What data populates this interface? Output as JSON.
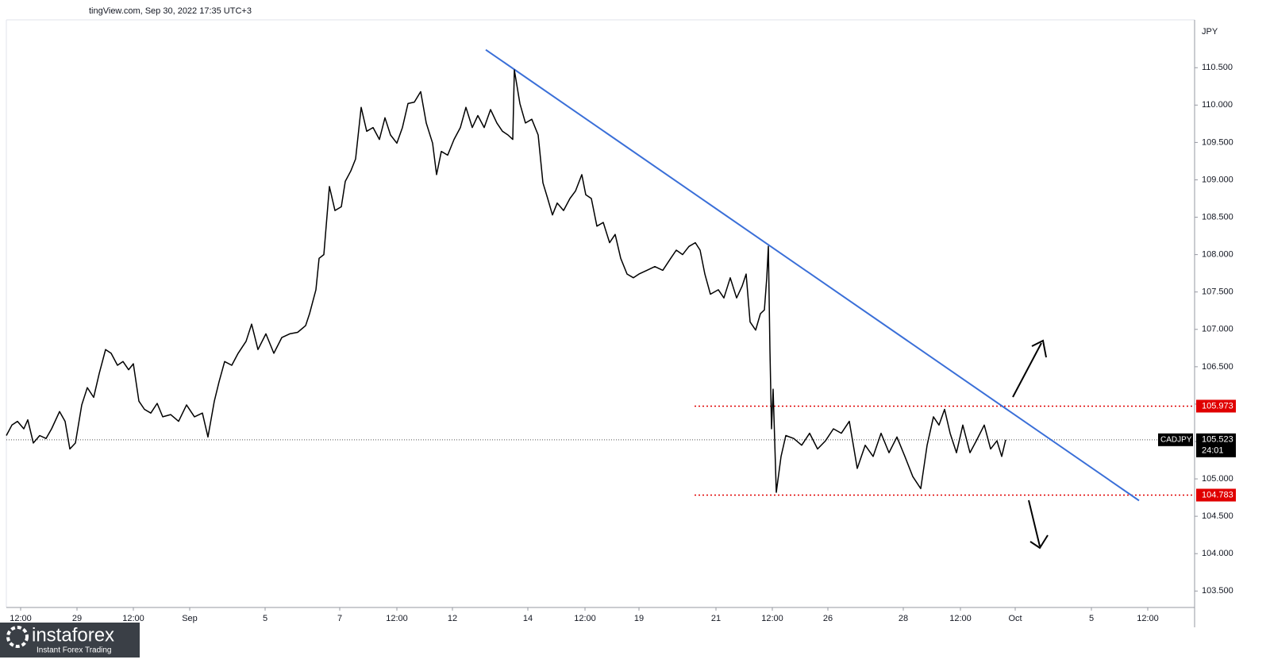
{
  "chart_data": {
    "type": "line",
    "header": "tingView.com, Sep 30, 2022 17:35 UTC+3",
    "currency": "JPY",
    "symbol": "CADJPY",
    "countdown": "24:01",
    "x": [
      0,
      7,
      14,
      22,
      27,
      34,
      42,
      50,
      57,
      67,
      74,
      80,
      87,
      95,
      102,
      110,
      117,
      125,
      132,
      140,
      147,
      154,
      160,
      167,
      174,
      182,
      190,
      197,
      207,
      217,
      227,
      237,
      247,
      254,
      262,
      268,
      275,
      284,
      292,
      302,
      309,
      317,
      327,
      337,
      347,
      357,
      367,
      377,
      382,
      390,
      394,
      400,
      407,
      414,
      422,
      427,
      434,
      440,
      447,
      454,
      462,
      470,
      477,
      484,
      492,
      499,
      506,
      514,
      522,
      529,
      537,
      542,
      548,
      556,
      564,
      572,
      579,
      587,
      594,
      602,
      610,
      618,
      625,
      632,
      638,
      640,
      647,
      654,
      662,
      670,
      676,
      682,
      688,
      694,
      702,
      710,
      717,
      725,
      730,
      737,
      744,
      752,
      760,
      767,
      774,
      782,
      790,
      797,
      807,
      817,
      827,
      837,
      844,
      852,
      860,
      868,
      874,
      880,
      887,
      897,
      904,
      912,
      920,
      927,
      932,
      937,
      944,
      950,
      955,
      958,
      960,
      962,
      964,
      966,
      970,
      976,
      982,
      992,
      1002,
      1012,
      1022,
      1032,
      1042,
      1052,
      1062,
      1072,
      1082,
      1092,
      1102,
      1112,
      1122,
      1132,
      1142,
      1152,
      1160,
      1168,
      1175,
      1182,
      1189,
      1197,
      1205,
      1214,
      1222,
      1232,
      1240,
      1248,
      1254,
      1259
    ],
    "series": [
      {
        "name": "CADJPY",
        "color": "#000000",
        "values": [
          105.58,
          105.72,
          105.77,
          105.67,
          105.79,
          105.48,
          105.58,
          105.54,
          105.67,
          105.9,
          105.77,
          105.4,
          105.48,
          105.99,
          106.22,
          106.09,
          106.41,
          106.73,
          106.68,
          106.52,
          106.57,
          106.46,
          106.54,
          106.04,
          105.93,
          105.88,
          106.01,
          105.83,
          105.86,
          105.77,
          105.99,
          105.83,
          105.88,
          105.56,
          106.04,
          106.3,
          106.57,
          106.52,
          106.68,
          106.84,
          107.07,
          106.73,
          106.94,
          106.68,
          106.89,
          106.94,
          106.96,
          107.05,
          107.21,
          107.53,
          107.95,
          108.0,
          108.91,
          108.59,
          108.64,
          108.98,
          109.12,
          109.28,
          109.97,
          109.65,
          109.7,
          109.54,
          109.83,
          109.6,
          109.49,
          109.7,
          110.02,
          110.04,
          110.18,
          109.76,
          109.49,
          109.07,
          109.38,
          109.33,
          109.54,
          109.7,
          109.97,
          109.7,
          109.86,
          109.7,
          109.94,
          109.76,
          109.65,
          109.6,
          109.54,
          110.47,
          110.02,
          109.76,
          109.81,
          109.6,
          108.96,
          108.75,
          108.53,
          108.69,
          108.59,
          108.75,
          108.85,
          109.07,
          108.8,
          108.75,
          108.38,
          108.43,
          108.16,
          108.27,
          107.95,
          107.74,
          107.69,
          107.74,
          107.79,
          107.84,
          107.79,
          107.95,
          108.06,
          108.0,
          108.11,
          108.16,
          108.06,
          107.74,
          107.47,
          107.53,
          107.42,
          107.69,
          107.42,
          107.58,
          107.74,
          107.1,
          106.99,
          107.21,
          107.26,
          107.69,
          108.11,
          106.73,
          105.67,
          106.2,
          104.82,
          105.3,
          105.58,
          105.54,
          105.45,
          105.61,
          105.4,
          105.51,
          105.67,
          105.61,
          105.77,
          105.14,
          105.45,
          105.3,
          105.61,
          105.35,
          105.56,
          105.3,
          105.03,
          104.87,
          105.45,
          105.83,
          105.72,
          105.93,
          105.61,
          105.35,
          105.72,
          105.35,
          105.51,
          105.72,
          105.4,
          105.51,
          105.3,
          105.523
        ]
      }
    ],
    "current": 105.523,
    "levels": [
      {
        "value": 105.973,
        "color": "#e00000"
      },
      {
        "value": 104.783,
        "color": "#e00000"
      }
    ],
    "trendline": {
      "x": [
        604,
        1427
      ],
      "y": [
        110.74,
        104.71
      ],
      "color": "#3a6fd8"
    },
    "xlim": [
      0,
      1497
    ],
    "ylim": [
      103.28,
      111.14
    ],
    "xticks": [
      {
        "value": 18,
        "label": "12:00"
      },
      {
        "value": 89,
        "label": "29"
      },
      {
        "value": 160,
        "label": "12:00"
      },
      {
        "value": 231,
        "label": "Sep"
      },
      {
        "value": 326,
        "label": "5"
      },
      {
        "value": 420,
        "label": "7"
      },
      {
        "value": 492,
        "label": "12:00"
      },
      {
        "value": 562,
        "label": "12"
      },
      {
        "value": 657,
        "label": "14"
      },
      {
        "value": 729,
        "label": "12:00"
      },
      {
        "value": 797,
        "label": "19"
      },
      {
        "value": 894,
        "label": "21"
      },
      {
        "value": 965,
        "label": "12:00"
      },
      {
        "value": 1035,
        "label": "26"
      },
      {
        "value": 1130,
        "label": "28"
      },
      {
        "value": 1202,
        "label": "12:00"
      },
      {
        "value": 1271,
        "label": "Oct"
      },
      {
        "value": 1367,
        "label": "5"
      },
      {
        "value": 1438,
        "label": "12:00"
      }
    ],
    "yticks": [
      {
        "value": 103.5,
        "label": "103.500"
      },
      {
        "value": 104,
        "label": "104.000"
      },
      {
        "value": 104.5,
        "label": "104.500"
      },
      {
        "value": 105,
        "label": "105.000"
      },
      {
        "value": 105.5,
        "label": "105.500"
      },
      {
        "value": 106,
        "label": "106.000"
      },
      {
        "value": 106.5,
        "label": "106.500"
      },
      {
        "value": 107,
        "label": "107.000"
      },
      {
        "value": 107.5,
        "label": "107.500"
      },
      {
        "value": 108,
        "label": "108.000"
      },
      {
        "value": 108.5,
        "label": "108.500"
      },
      {
        "value": 109,
        "label": "109.000"
      },
      {
        "value": 109.5,
        "label": "109.500"
      },
      {
        "value": 110,
        "label": "110.000"
      },
      {
        "value": 110.5,
        "label": "110.500"
      }
    ]
  },
  "watermark": {
    "brand": "instaforex",
    "tagline": "Instant Forex Trading"
  }
}
